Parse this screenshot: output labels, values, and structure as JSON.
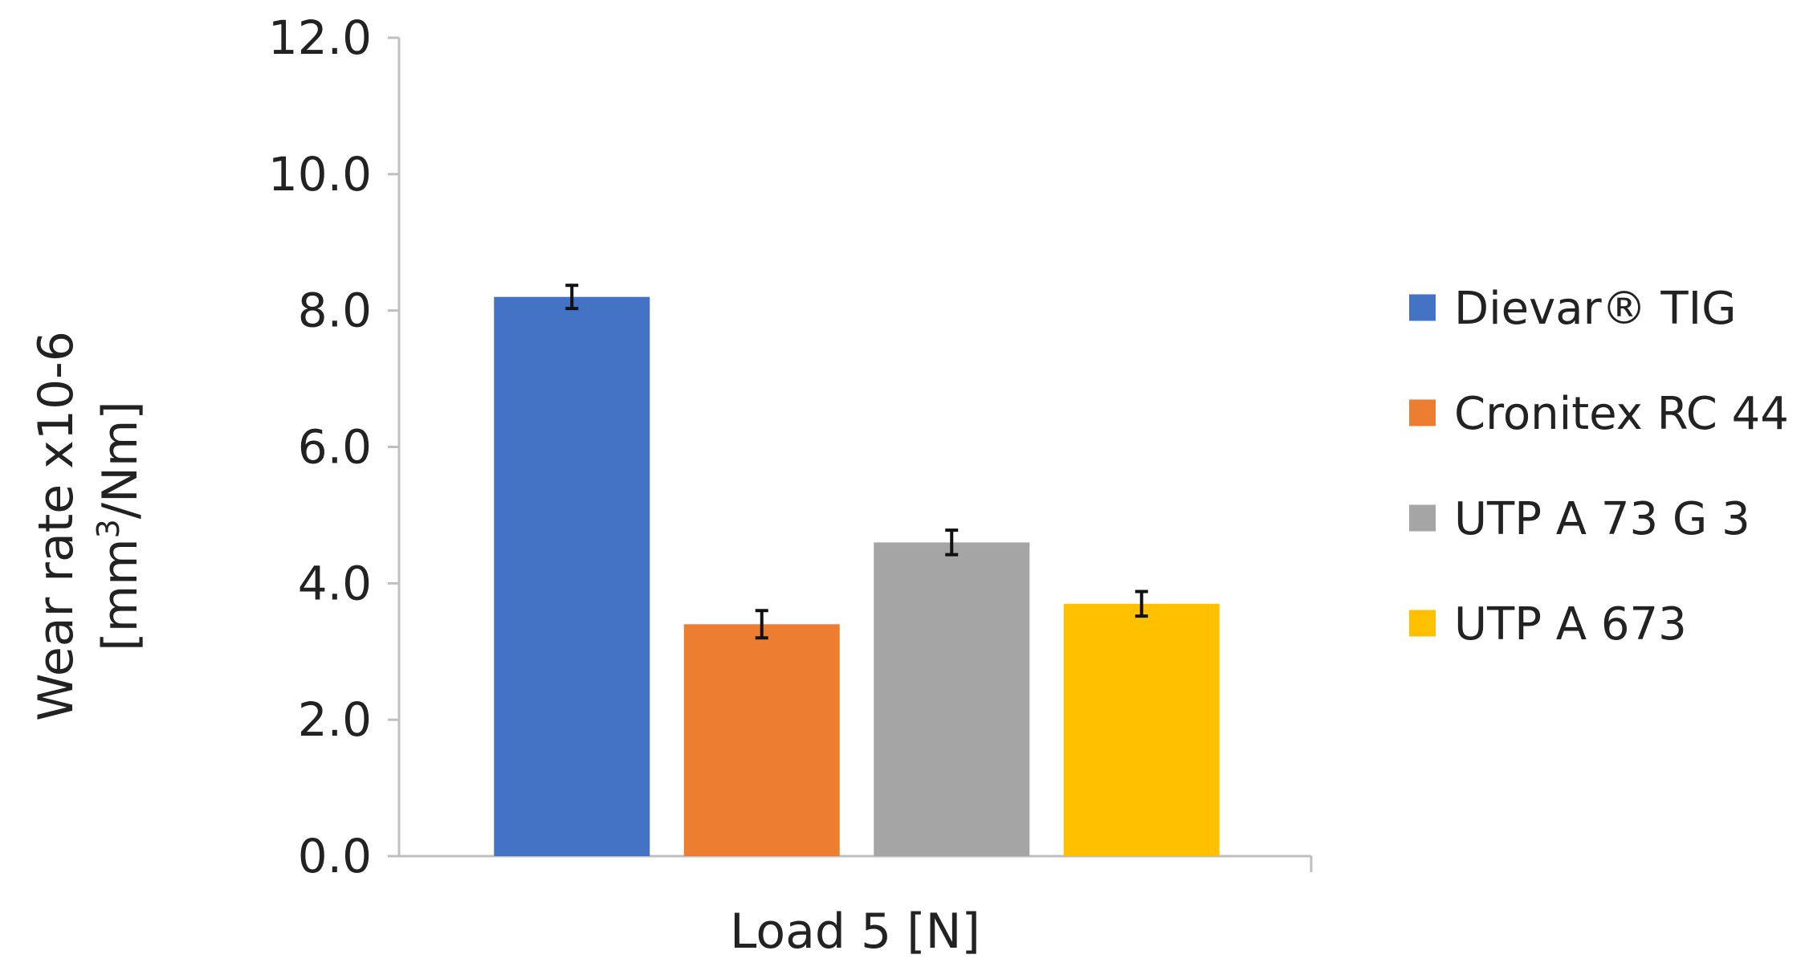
{
  "chart_data": {
    "type": "bar",
    "categories": [
      "Load 5 [N]"
    ],
    "xlabel": "Load 5 [N]",
    "ylabel_line1": "Wear rate x10-6",
    "ylabel_line2_prefix": "[mm",
    "ylabel_line2_sup": "3",
    "ylabel_line2_suffix": "/Nm]",
    "ylim": [
      0,
      12
    ],
    "yticks": [
      "0.0",
      "2.0",
      "4.0",
      "6.0",
      "8.0",
      "10.0",
      "12.0"
    ],
    "grid": false,
    "legend_position": "right",
    "series": [
      {
        "name": "Dievar® TIG",
        "value": 8.2,
        "error": 0.17,
        "color": "#4472C4"
      },
      {
        "name": "Cronitex RC 44",
        "value": 3.4,
        "error": 0.2,
        "color": "#ED7D31"
      },
      {
        "name": "UTP A 73 G 3",
        "value": 4.6,
        "error": 0.18,
        "color": "#A5A5A5"
      },
      {
        "name": "UTP A 673",
        "value": 3.7,
        "error": 0.18,
        "color": "#FFC000"
      }
    ]
  }
}
